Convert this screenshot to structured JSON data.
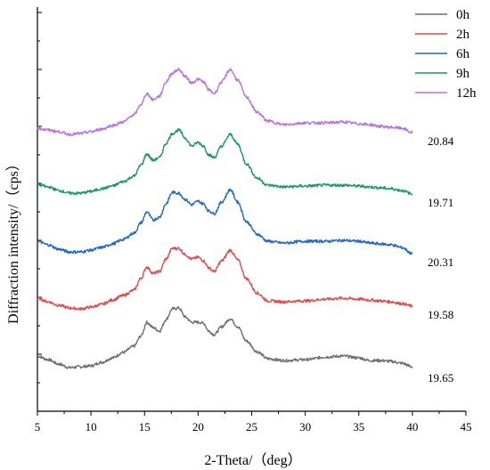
{
  "chart_data": {
    "type": "line",
    "title": "",
    "xlabel": "2-Theta/（deg）",
    "ylabel": "Diffraction intensity/（cps）",
    "xlim": [
      5,
      45
    ],
    "x_ticks": [
      5,
      10,
      15,
      20,
      25,
      30,
      35,
      40,
      45
    ],
    "y_ticks_labeled": false,
    "grid": false,
    "legend_position": "top-right",
    "series": [
      {
        "name": "0h",
        "color": "#6e6e6e",
        "label": "19.65",
        "offset": 0,
        "points": [
          [
            5,
            25
          ],
          [
            6,
            21
          ],
          [
            7,
            16
          ],
          [
            8,
            12
          ],
          [
            9,
            13
          ],
          [
            10,
            14
          ],
          [
            11,
            18
          ],
          [
            12,
            23
          ],
          [
            13,
            29
          ],
          [
            14,
            36
          ],
          [
            14.7,
            48
          ],
          [
            15.2,
            63
          ],
          [
            15.8,
            57
          ],
          [
            16.4,
            53
          ],
          [
            17,
            66
          ],
          [
            17.6,
            78
          ],
          [
            18.2,
            79
          ],
          [
            18.8,
            69
          ],
          [
            19.4,
            63
          ],
          [
            20,
            63
          ],
          [
            20.5,
            62
          ],
          [
            21,
            53
          ],
          [
            21.5,
            49
          ],
          [
            22.2,
            58
          ],
          [
            23,
            67
          ],
          [
            23.7,
            58
          ],
          [
            24.5,
            42
          ],
          [
            25.5,
            30
          ],
          [
            26.5,
            22
          ],
          [
            28,
            20
          ],
          [
            30,
            21
          ],
          [
            32,
            24
          ],
          [
            33.5,
            25
          ],
          [
            35,
            23
          ],
          [
            36,
            20
          ],
          [
            37,
            20
          ],
          [
            38,
            19
          ],
          [
            39,
            17
          ],
          [
            40,
            13
          ]
        ]
      },
      {
        "name": "2h",
        "color": "#e04b4b",
        "label": "19.58",
        "offset": 68,
        "points": [
          [
            5,
            22
          ],
          [
            6,
            18
          ],
          [
            7,
            14
          ],
          [
            8,
            11
          ],
          [
            9,
            10
          ],
          [
            10,
            12
          ],
          [
            11,
            15
          ],
          [
            12,
            20
          ],
          [
            13,
            25
          ],
          [
            14,
            31
          ],
          [
            14.7,
            45
          ],
          [
            15.2,
            57
          ],
          [
            15.8,
            50
          ],
          [
            16.4,
            52
          ],
          [
            17,
            66
          ],
          [
            17.6,
            78
          ],
          [
            18.2,
            78
          ],
          [
            18.8,
            71
          ],
          [
            19.4,
            66
          ],
          [
            20,
            68
          ],
          [
            20.5,
            64
          ],
          [
            21,
            56
          ],
          [
            21.5,
            52
          ],
          [
            22.2,
            64
          ],
          [
            23,
            76
          ],
          [
            23.7,
            65
          ],
          [
            24.5,
            44
          ],
          [
            25.5,
            28
          ],
          [
            26.5,
            19
          ],
          [
            28,
            18
          ],
          [
            30,
            19
          ],
          [
            32,
            21
          ],
          [
            33.5,
            22
          ],
          [
            35,
            21
          ],
          [
            36,
            20
          ],
          [
            37,
            19
          ],
          [
            38,
            18
          ],
          [
            39,
            16
          ],
          [
            40,
            13
          ]
        ]
      },
      {
        "name": "6h",
        "color": "#2266c9",
        "label": "20.31",
        "offset": 132,
        "points": [
          [
            5,
            22
          ],
          [
            6,
            18
          ],
          [
            7,
            13
          ],
          [
            8,
            10
          ],
          [
            9,
            10
          ],
          [
            10,
            12
          ],
          [
            11,
            15
          ],
          [
            12,
            19
          ],
          [
            13,
            24
          ],
          [
            14,
            31
          ],
          [
            14.7,
            43
          ],
          [
            15.2,
            55
          ],
          [
            15.8,
            46
          ],
          [
            16.4,
            49
          ],
          [
            17,
            64
          ],
          [
            17.6,
            77
          ],
          [
            18.2,
            76
          ],
          [
            18.8,
            69
          ],
          [
            19.4,
            63
          ],
          [
            20,
            67
          ],
          [
            20.5,
            64
          ],
          [
            21,
            56
          ],
          [
            21.5,
            53
          ],
          [
            22.2,
            66
          ],
          [
            23,
            80
          ],
          [
            23.7,
            66
          ],
          [
            24.5,
            44
          ],
          [
            25.5,
            30
          ],
          [
            26.5,
            22
          ],
          [
            28,
            20
          ],
          [
            30,
            22
          ],
          [
            32,
            22
          ],
          [
            33.5,
            23
          ],
          [
            35,
            22
          ],
          [
            36,
            20
          ],
          [
            37,
            19
          ],
          [
            38,
            18
          ],
          [
            39,
            15
          ],
          [
            40,
            8
          ]
        ]
      },
      {
        "name": "9h",
        "color": "#159a5c",
        "label": "19.71",
        "offset": 198,
        "points": [
          [
            5,
            20
          ],
          [
            6,
            17
          ],
          [
            7,
            13
          ],
          [
            8,
            10
          ],
          [
            9,
            10
          ],
          [
            10,
            12
          ],
          [
            11,
            15
          ],
          [
            12,
            18
          ],
          [
            13,
            23
          ],
          [
            14,
            29
          ],
          [
            14.7,
            42
          ],
          [
            15.2,
            54
          ],
          [
            15.8,
            47
          ],
          [
            16.4,
            50
          ],
          [
            17,
            66
          ],
          [
            17.6,
            77
          ],
          [
            18.2,
            81
          ],
          [
            18.8,
            72
          ],
          [
            19.4,
            63
          ],
          [
            20,
            67
          ],
          [
            20.5,
            63
          ],
          [
            21,
            53
          ],
          [
            21.5,
            50
          ],
          [
            22.2,
            63
          ],
          [
            23,
            76
          ],
          [
            23.7,
            65
          ],
          [
            24.5,
            43
          ],
          [
            25.5,
            27
          ],
          [
            26.5,
            19
          ],
          [
            28,
            17
          ],
          [
            30,
            18
          ],
          [
            32,
            19
          ],
          [
            33.5,
            19
          ],
          [
            35,
            18
          ],
          [
            36,
            17
          ],
          [
            37,
            16
          ],
          [
            38,
            15
          ],
          [
            39,
            13
          ],
          [
            40,
            9
          ]
        ]
      },
      {
        "name": "12h",
        "color": "#b873e0",
        "label": "20.84",
        "offset": 263,
        "points": [
          [
            5,
            18
          ],
          [
            6,
            16
          ],
          [
            7,
            14
          ],
          [
            8,
            11
          ],
          [
            9,
            12
          ],
          [
            10,
            14
          ],
          [
            11,
            17
          ],
          [
            12,
            21
          ],
          [
            13,
            25
          ],
          [
            14,
            33
          ],
          [
            14.7,
            45
          ],
          [
            15.2,
            57
          ],
          [
            15.8,
            50
          ],
          [
            16.4,
            54
          ],
          [
            17,
            70
          ],
          [
            17.6,
            80
          ],
          [
            18.2,
            84
          ],
          [
            18.8,
            76
          ],
          [
            19.4,
            69
          ],
          [
            20,
            73
          ],
          [
            20.5,
            70
          ],
          [
            21,
            61
          ],
          [
            21.5,
            57
          ],
          [
            22.2,
            70
          ],
          [
            23,
            84
          ],
          [
            23.7,
            72
          ],
          [
            24.5,
            53
          ],
          [
            25.5,
            36
          ],
          [
            26.5,
            26
          ],
          [
            28,
            22
          ],
          [
            30,
            24
          ],
          [
            32,
            24
          ],
          [
            33.5,
            25
          ],
          [
            35,
            23
          ],
          [
            36,
            22
          ],
          [
            37,
            20
          ],
          [
            38,
            19
          ],
          [
            39,
            18
          ],
          [
            40,
            13
          ]
        ]
      }
    ]
  }
}
